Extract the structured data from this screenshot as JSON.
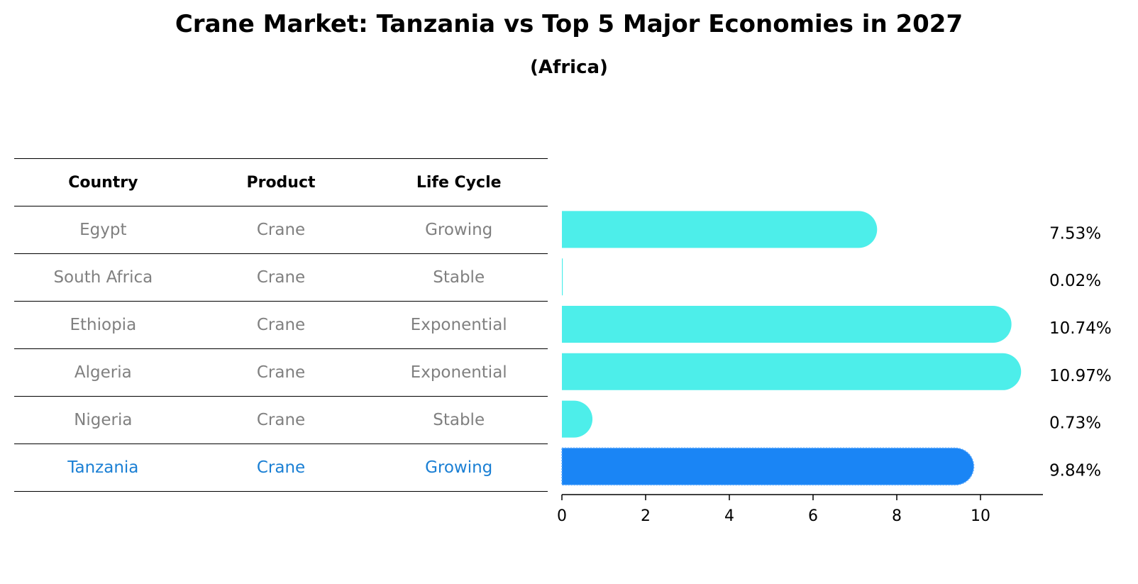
{
  "chart_data": {
    "type": "bar",
    "orientation": "horizontal",
    "title": "Crane Market: Tanzania vs Top 5 Major Economies in 2027",
    "subtitle": "(Africa)",
    "table": {
      "columns": [
        "Country",
        "Product",
        "Life Cycle"
      ],
      "rows": [
        [
          "Egypt",
          "Crane",
          "Growing"
        ],
        [
          "South Africa",
          "Crane",
          "Stable"
        ],
        [
          "Ethiopia",
          "Crane",
          "Exponential"
        ],
        [
          "Algeria",
          "Crane",
          "Exponential"
        ],
        [
          "Nigeria",
          "Crane",
          "Stable"
        ],
        [
          "Tanzania",
          "Crane",
          "Growing"
        ]
      ],
      "highlight_row": "Tanzania"
    },
    "categories": [
      "Egypt",
      "South Africa",
      "Ethiopia",
      "Algeria",
      "Nigeria",
      "Tanzania"
    ],
    "values": [
      7.53,
      0.02,
      10.74,
      10.97,
      0.73,
      9.84
    ],
    "value_labels": [
      "7.53%",
      "0.02%",
      "10.74%",
      "10.97%",
      "0.73%",
      "9.84%"
    ],
    "xlim": [
      0,
      11.5
    ],
    "xticks": [
      "0",
      "2",
      "4",
      "6",
      "8",
      "10"
    ],
    "colors": {
      "bar": "#4deeea",
      "highlight_bar": "#1a85f5",
      "highlight_text": "#1a7fd4",
      "muted_text": "#808080"
    }
  }
}
